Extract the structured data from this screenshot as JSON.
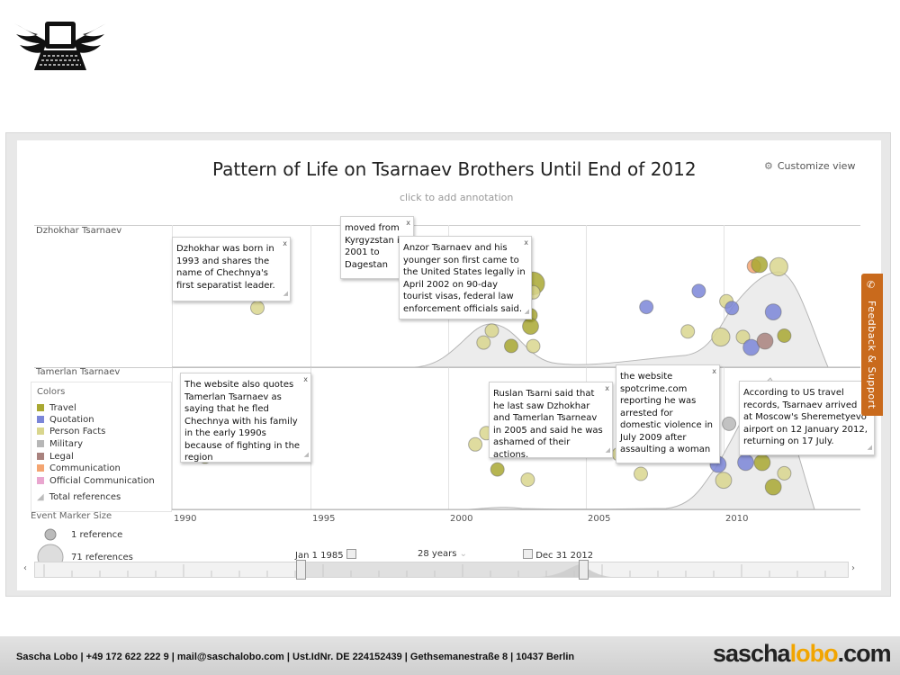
{
  "header": {
    "logo_icon": "winged-typewriter-logo-icon"
  },
  "chart": {
    "title": "Pattern of Life on Tsarnaev Brothers Until End of 2012",
    "subtitle": "click to add annotation",
    "customize_label": "Customize view",
    "customize_icon": "gear-icon"
  },
  "lanes": [
    "Dzhokhar Tsarnaev",
    "Tamerlan Tsarnaev"
  ],
  "legend": {
    "colors_title": "Colors",
    "items": [
      {
        "label": "Travel",
        "color": "#a9a832"
      },
      {
        "label": "Quotation",
        "color": "#7b86d8"
      },
      {
        "label": "Person Facts",
        "color": "#d9d68e"
      },
      {
        "label": "Military",
        "color": "#b7b7b7"
      },
      {
        "label": "Legal",
        "color": "#a9827e"
      },
      {
        "label": "Communication",
        "color": "#f4a571"
      },
      {
        "label": "Official Communication",
        "color": "#e9a6cf"
      }
    ],
    "total_label": "Total references",
    "size_title": "Event Marker Size",
    "size_small": "1 reference",
    "size_large": "71 references"
  },
  "annotations": {
    "a1": "Dzhokhar was born in 1993 and shares the name of Chechnya's first separatist leader.",
    "a2": "moved from Kyrgyzstan in 2001 to Dagestan",
    "a3": "Anzor Tsarnaev and his younger son first came to the United States legally in April 2002 on 90-day tourist visas, federal law enforcement officials said.",
    "a4": "The website also quotes Tamerlan Tsarnaev as saying that he fled Chechnya with his family in the early 1990s because of fighting in the region",
    "a5": "Ruslan Tsarni said that he last saw Dzhokhar and Tamerlan Tsarneav in 2005 and said he was ashamed of their actions.",
    "a6": "the website spotcrime.com reporting he was arrested for domestic violence in July 2009 after assaulting a woman",
    "a7": "According to US travel records, Tsarnaev arrived at Moscow's Sheremetyevo airport on 12 January 2012, returning on 17 July.",
    "close": "x"
  },
  "axis": {
    "ticks": [
      "1990",
      "1995",
      "2000",
      "2005",
      "2010"
    ]
  },
  "range": {
    "start": "Jan 1 1985",
    "span": "28 years",
    "end": "Dec 31 2012"
  },
  "feedback": {
    "label": "Feedback & Support",
    "icon": "megaphone-icon"
  },
  "footer": {
    "contact": "Sascha Lobo | +49 172 622 222 9 | mail@saschalobo.com | Ust.IdNr. DE 224152439 | Gethsemanestraße 8 | 10437 Berlin",
    "brand_a": "sascha",
    "brand_b": "lobo",
    "brand_c": ".com"
  },
  "chart_data": {
    "type": "scatter",
    "x_range": [
      1985,
      2012
    ],
    "x_ticks": [
      1990,
      1995,
      2000,
      2005,
      2010
    ],
    "series": [
      {
        "name": "Dzhokhar Tsarnaev",
        "points": [
          [
            1993.1,
            "Person Facts",
            1
          ],
          [
            2001.1,
            "Person Facts",
            1
          ],
          [
            2001.3,
            "Person Facts",
            1
          ],
          [
            2001.6,
            "Person Facts",
            1
          ],
          [
            2001.8,
            "Legal",
            1
          ],
          [
            2002.0,
            "Person Facts",
            1
          ],
          [
            2002.3,
            "Travel",
            1
          ],
          [
            2002.5,
            "Travel",
            1
          ],
          [
            2002.8,
            "Travel",
            1
          ],
          [
            2003.0,
            "Travel",
            1
          ],
          [
            2003.0,
            "Travel",
            2
          ],
          [
            2003.1,
            "Travel",
            6
          ],
          [
            2003.1,
            "Person Facts",
            1
          ],
          [
            2003.1,
            "Person Facts",
            1
          ],
          [
            2007.2,
            "Quotation",
            1
          ],
          [
            2008.7,
            "Person Facts",
            1
          ],
          [
            2009.1,
            "Quotation",
            1
          ],
          [
            2009.9,
            "Person Facts",
            3
          ],
          [
            2010.1,
            "Person Facts",
            1
          ],
          [
            2010.3,
            "Quotation",
            1
          ],
          [
            2010.7,
            "Person Facts",
            1
          ],
          [
            2011.0,
            "Quotation",
            2
          ],
          [
            2011.1,
            "Communication",
            1
          ],
          [
            2011.3,
            "Travel",
            2
          ],
          [
            2011.5,
            "Legal",
            2
          ],
          [
            2011.8,
            "Quotation",
            2
          ],
          [
            2012.0,
            "Person Facts",
            3
          ],
          [
            2012.2,
            "Travel",
            1
          ]
        ]
      },
      {
        "name": "Tamerlan Tsarnaev",
        "points": [
          [
            1991.2,
            "Travel",
            1
          ],
          [
            2001.0,
            "Person Facts",
            1
          ],
          [
            2001.4,
            "Person Facts",
            1
          ],
          [
            2001.8,
            "Travel",
            1
          ],
          [
            2002.9,
            "Person Facts",
            1
          ],
          [
            2003.0,
            "Travel",
            1
          ],
          [
            2006.2,
            "Person Facts",
            1
          ],
          [
            2007.0,
            "Person Facts",
            1
          ],
          [
            2009.3,
            "Legal",
            1
          ],
          [
            2009.8,
            "Quotation",
            2
          ],
          [
            2010.0,
            "Person Facts",
            2
          ],
          [
            2010.2,
            "Military",
            1
          ],
          [
            2010.8,
            "Quotation",
            2
          ],
          [
            2011.4,
            "Travel",
            2
          ],
          [
            2011.8,
            "Travel",
            2
          ],
          [
            2012.0,
            "Travel",
            2
          ],
          [
            2012.2,
            "Person Facts",
            1
          ]
        ]
      }
    ]
  }
}
